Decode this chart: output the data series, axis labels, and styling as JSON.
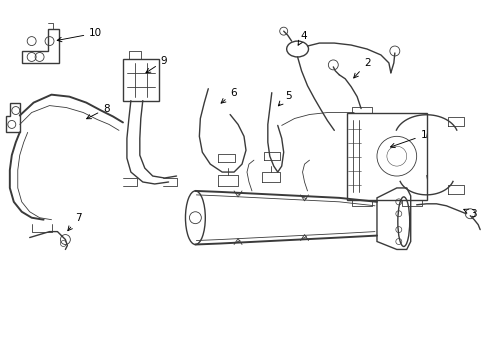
{
  "bg_color": "#ffffff",
  "line_color": "#3a3a3a",
  "lw_main": 1.0,
  "lw_thin": 0.6,
  "lw_thick": 1.4,
  "fig_width": 4.9,
  "fig_height": 3.6,
  "dpi": 100,
  "font_size": 7.5,
  "callouts": {
    "1": [
      4.08,
      2.18,
      4.22,
      2.28
    ],
    "2": [
      3.62,
      2.82,
      3.62,
      2.95
    ],
    "3": [
      4.55,
      1.42,
      4.68,
      1.45
    ],
    "4": [
      3.02,
      3.08,
      3.02,
      3.22
    ],
    "5": [
      2.75,
      2.48,
      2.82,
      2.62
    ],
    "6": [
      2.28,
      2.52,
      2.28,
      2.65
    ],
    "7": [
      0.62,
      1.28,
      0.72,
      1.4
    ],
    "8": [
      0.88,
      2.38,
      1.0,
      2.5
    ],
    "9": [
      1.48,
      2.85,
      1.58,
      2.98
    ],
    "10": [
      0.62,
      3.12,
      0.85,
      3.28
    ]
  }
}
